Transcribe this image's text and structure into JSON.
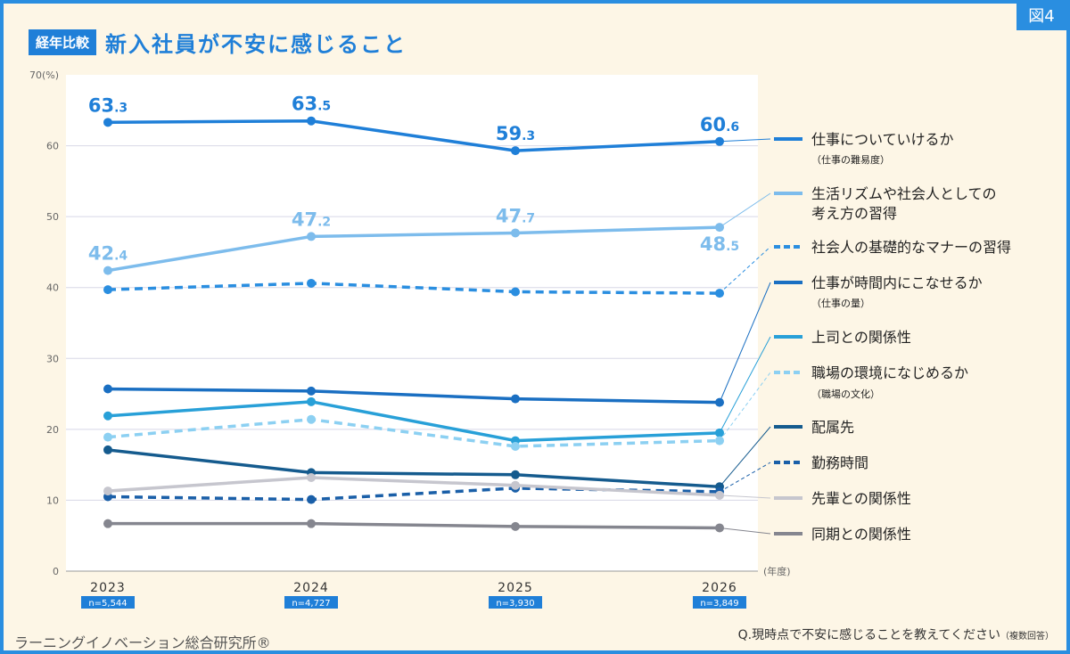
{
  "header": {
    "badge": "経年比較",
    "title": "新入社員が不安に感じること",
    "figure_tag": "図4"
  },
  "footer": {
    "organization": "ラーニングイノベーション総合研究所®",
    "question": "Q.現時点で不安に感じることを教えてください",
    "question_note": "（複数回答）"
  },
  "chart_data": {
    "type": "line",
    "x": [
      "2023",
      "2024",
      "2025",
      "2026"
    ],
    "sample_sizes": [
      "n=5,544",
      "n=4,727",
      "n=3,930",
      "n=3,849"
    ],
    "ylim": [
      0,
      70
    ],
    "yticks": [
      0,
      10,
      20,
      30,
      40,
      50,
      60
    ],
    "ytop_label": "70(%)",
    "xunit_label": "(年度)",
    "grid": true,
    "legend_position": "right",
    "series": [
      {
        "name": "仕事についていけるか",
        "sub": "（仕事の難易度）",
        "values": [
          63.3,
          63.5,
          59.3,
          60.6
        ],
        "color": "#1f7fd8",
        "dashed": false,
        "labels": [
          "63.3",
          "63.5",
          "59.3",
          "60.6"
        ]
      },
      {
        "name": "生活リズムや社会人としての",
        "name2": "考え方の習得",
        "values": [
          42.4,
          47.2,
          47.7,
          48.5
        ],
        "color": "#7dbcec",
        "dashed": false,
        "labels": [
          "42.4",
          "47.2",
          "47.7",
          "48.5"
        ]
      },
      {
        "name": "社会人の基礎的なマナーの習得",
        "values": [
          39.7,
          40.6,
          39.4,
          39.2
        ],
        "color": "#2a8ee0",
        "dashed": true
      },
      {
        "name": "仕事が時間内にこなせるか",
        "sub": "（仕事の量）",
        "values": [
          25.7,
          25.4,
          24.3,
          23.8
        ],
        "color": "#1a6fc2",
        "dashed": false
      },
      {
        "name": "上司との関係性",
        "values": [
          21.9,
          23.9,
          18.4,
          19.5
        ],
        "color": "#28a0d8",
        "dashed": false
      },
      {
        "name": "職場の環境になじめるか",
        "sub": "（職場の文化）",
        "values": [
          18.9,
          21.4,
          17.6,
          18.4
        ],
        "color": "#8cd0f2",
        "dashed": true
      },
      {
        "name": "配属先",
        "values": [
          17.1,
          13.9,
          13.6,
          11.9
        ],
        "color": "#155b8e",
        "dashed": false
      },
      {
        "name": "勤務時間",
        "values": [
          10.5,
          10.1,
          11.7,
          11.2
        ],
        "color": "#1a5fa8",
        "dashed": true
      },
      {
        "name": "先輩との関係性",
        "values": [
          11.3,
          13.2,
          12.1,
          10.7
        ],
        "color": "#c6c6ce",
        "dashed": false
      },
      {
        "name": "同期との関係性",
        "values": [
          6.7,
          6.7,
          6.3,
          6.1
        ],
        "color": "#85868f",
        "dashed": false
      }
    ]
  }
}
